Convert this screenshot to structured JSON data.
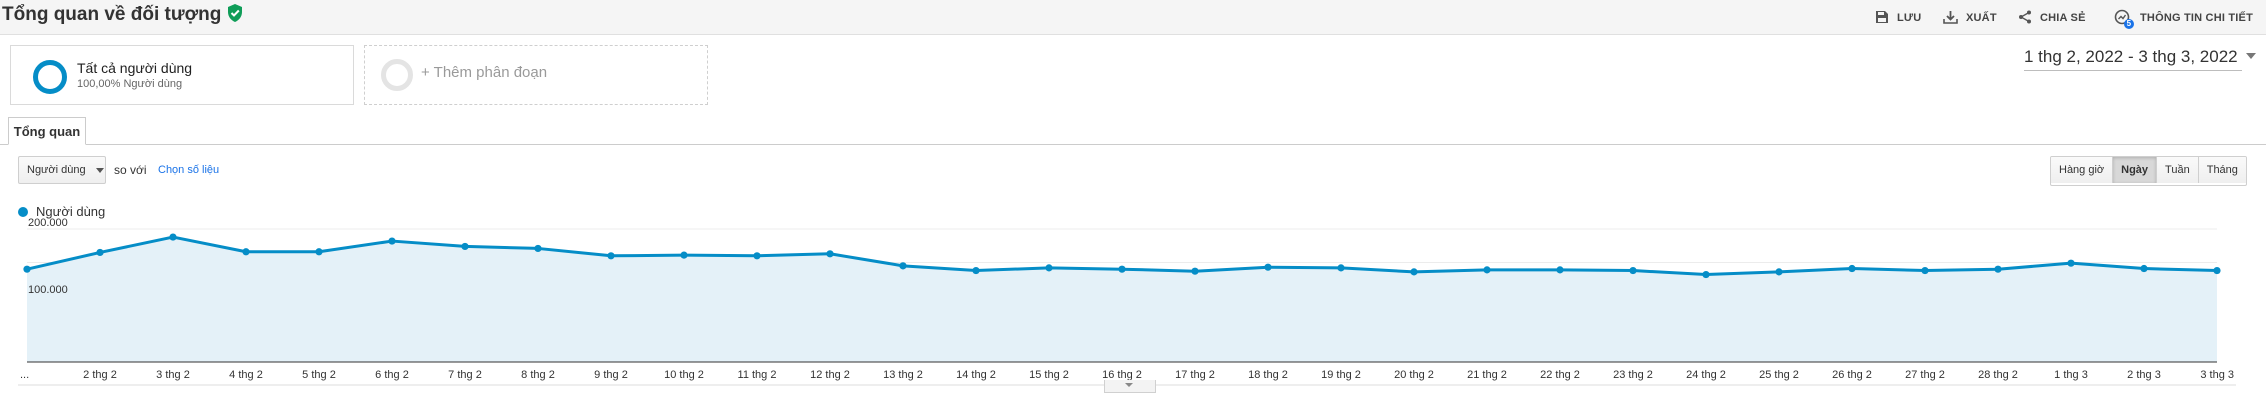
{
  "header": {
    "title": "Tổng quan về đối tượng",
    "save_label": "LƯU",
    "export_label": "XUẤT",
    "share_label": "CHIA SẺ",
    "insights_label": "THÔNG TIN CHI TIẾT",
    "insights_badge": "5"
  },
  "segments": {
    "all_users_title": "Tất cả người dùng",
    "all_users_subtitle": "100,00% Người dùng",
    "add_segment_label": "+ Thêm phân đoạn"
  },
  "date_range": "1 thg 2, 2022 - 3 thg 3, 2022",
  "tabs": {
    "overview": "Tổng quan"
  },
  "controls": {
    "metric_selected": "Người dùng",
    "compare_label": "so với",
    "choose_metric": "Chọn số liệu",
    "granularity": [
      "Hàng giờ",
      "Ngày",
      "Tuần",
      "Tháng"
    ],
    "granularity_active": "Ngày"
  },
  "colors": {
    "accent": "#058dc7",
    "area_fill": "#e4f1f8",
    "verified": "#0f9d58",
    "link": "#1a73e8"
  },
  "chart_data": {
    "type": "area",
    "series": [
      {
        "name": "Người dùng",
        "values": [
          140000,
          165000,
          188000,
          166000,
          166000,
          182000,
          174000,
          171000,
          160000,
          161000,
          160000,
          163000,
          145000,
          138000,
          142000,
          140000,
          137000,
          143000,
          142000,
          136000,
          139000,
          139000,
          138000,
          132000,
          136000,
          141000,
          138000,
          140000,
          149000,
          141000,
          138000
        ]
      }
    ],
    "x": [
      "...",
      "2 thg 2",
      "3 thg 2",
      "4 thg 2",
      "5 thg 2",
      "6 thg 2",
      "7 thg 2",
      "8 thg 2",
      "9 thg 2",
      "10 thg 2",
      "11 thg 2",
      "12 thg 2",
      "13 thg 2",
      "14 thg 2",
      "15 thg 2",
      "16 thg 2",
      "17 thg 2",
      "18 thg 2",
      "19 thg 2",
      "20 thg 2",
      "21 thg 2",
      "22 thg 2",
      "23 thg 2",
      "24 thg 2",
      "25 thg 2",
      "26 thg 2",
      "27 thg 2",
      "28 thg 2",
      "1 thg 3",
      "2 thg 3",
      "3 thg 3"
    ],
    "ytick_labels": [
      "200.000",
      "100.000"
    ],
    "yticks": [
      200000,
      100000
    ],
    "ylim": [
      0,
      200000
    ],
    "grid": true,
    "legend": "top-left"
  }
}
